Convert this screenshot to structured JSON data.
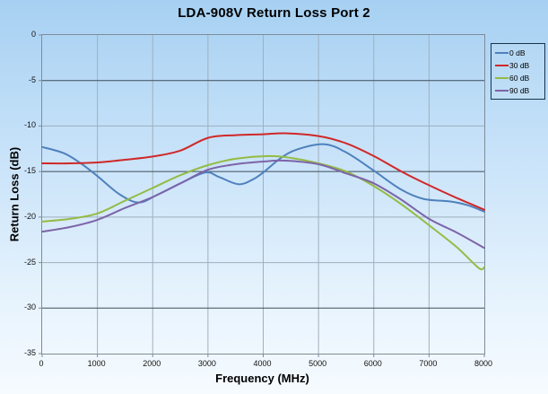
{
  "title": "LDA-908V Return Loss Port 2",
  "chart_data": {
    "type": "line",
    "title": "LDA-908V Return Loss Port 2",
    "xlabel": "Frequency (MHz)",
    "ylabel": "Return Loss (dB)",
    "xlim": [
      0,
      8000
    ],
    "ylim": [
      -35,
      0
    ],
    "x_ticks": [
      0,
      1000,
      2000,
      3000,
      4000,
      5000,
      6000,
      7000,
      8000
    ],
    "y_ticks": [
      0,
      -5,
      -10,
      -15,
      -20,
      -25,
      -30,
      -35
    ],
    "grid": true,
    "legend_position": "outside-top-right",
    "h_gridlines": [
      {
        "value": -5,
        "shade": "dark"
      },
      {
        "value": -10,
        "shade": "light"
      },
      {
        "value": -15,
        "shade": "dark"
      },
      {
        "value": -20,
        "shade": "light"
      },
      {
        "value": -25,
        "shade": "light"
      },
      {
        "value": -30,
        "shade": "dark"
      }
    ],
    "v_gridlines": [
      1000,
      2000,
      3000,
      4000,
      5000,
      6000,
      7000
    ],
    "series": [
      {
        "name": "0 dB",
        "color": "#4f81bd",
        "points": [
          [
            0,
            -12.3
          ],
          [
            400,
            -13.0
          ],
          [
            700,
            -14.1
          ],
          [
            1000,
            -15.5
          ],
          [
            1400,
            -17.5
          ],
          [
            1750,
            -18.4
          ],
          [
            2100,
            -17.5
          ],
          [
            2500,
            -16.3
          ],
          [
            2950,
            -15.1
          ],
          [
            3200,
            -15.6
          ],
          [
            3550,
            -16.4
          ],
          [
            3800,
            -15.9
          ],
          [
            4000,
            -15.1
          ],
          [
            4300,
            -13.6
          ],
          [
            4600,
            -12.6
          ],
          [
            5100,
            -12.0
          ],
          [
            5500,
            -12.9
          ],
          [
            6000,
            -14.9
          ],
          [
            6500,
            -17.0
          ],
          [
            6900,
            -18.0
          ],
          [
            7400,
            -18.3
          ],
          [
            7700,
            -18.7
          ],
          [
            8000,
            -19.4
          ]
        ]
      },
      {
        "name": "30 dB",
        "color": "#d02828",
        "points": [
          [
            0,
            -14.1
          ],
          [
            500,
            -14.1
          ],
          [
            1000,
            -14.0
          ],
          [
            1500,
            -13.7
          ],
          [
            2000,
            -13.35
          ],
          [
            2500,
            -12.7
          ],
          [
            3000,
            -11.3
          ],
          [
            3500,
            -11.0
          ],
          [
            4000,
            -10.9
          ],
          [
            4400,
            -10.8
          ],
          [
            5000,
            -11.1
          ],
          [
            5500,
            -11.9
          ],
          [
            6000,
            -13.3
          ],
          [
            6500,
            -15.0
          ],
          [
            7000,
            -16.5
          ],
          [
            7500,
            -17.9
          ],
          [
            8000,
            -19.2
          ]
        ]
      },
      {
        "name": "60 dB",
        "color": "#94bb44",
        "points": [
          [
            0,
            -20.5
          ],
          [
            500,
            -20.2
          ],
          [
            1000,
            -19.6
          ],
          [
            1500,
            -18.2
          ],
          [
            2000,
            -16.8
          ],
          [
            2500,
            -15.4
          ],
          [
            3000,
            -14.3
          ],
          [
            3500,
            -13.6
          ],
          [
            4100,
            -13.3
          ],
          [
            4500,
            -13.5
          ],
          [
            5000,
            -14.1
          ],
          [
            5500,
            -15.0
          ],
          [
            6000,
            -16.6
          ],
          [
            6500,
            -18.6
          ],
          [
            7000,
            -20.9
          ],
          [
            7500,
            -23.3
          ],
          [
            7900,
            -25.6
          ],
          [
            8000,
            -25.5
          ]
        ]
      },
      {
        "name": "90 dB",
        "color": "#7d64a8",
        "points": [
          [
            0,
            -21.6
          ],
          [
            500,
            -21.1
          ],
          [
            1000,
            -20.3
          ],
          [
            1500,
            -19.0
          ],
          [
            2000,
            -17.8
          ],
          [
            2500,
            -16.3
          ],
          [
            3000,
            -14.8
          ],
          [
            3500,
            -14.2
          ],
          [
            4000,
            -13.9
          ],
          [
            4400,
            -13.8
          ],
          [
            5000,
            -14.2
          ],
          [
            5500,
            -15.2
          ],
          [
            6000,
            -16.3
          ],
          [
            6500,
            -18.1
          ],
          [
            7000,
            -20.2
          ],
          [
            7500,
            -21.7
          ],
          [
            8000,
            -23.4
          ]
        ]
      }
    ]
  },
  "colors": {
    "background_top": "#a6d0f2",
    "background_bottom": "#f6fbff",
    "plot_frame": "#7e8c98",
    "grid_dark": "#3e4c5a",
    "grid_light": "#9fb0bd",
    "legend_border": "#17334d",
    "tick_text": "#111111",
    "title_text": "#000000"
  }
}
